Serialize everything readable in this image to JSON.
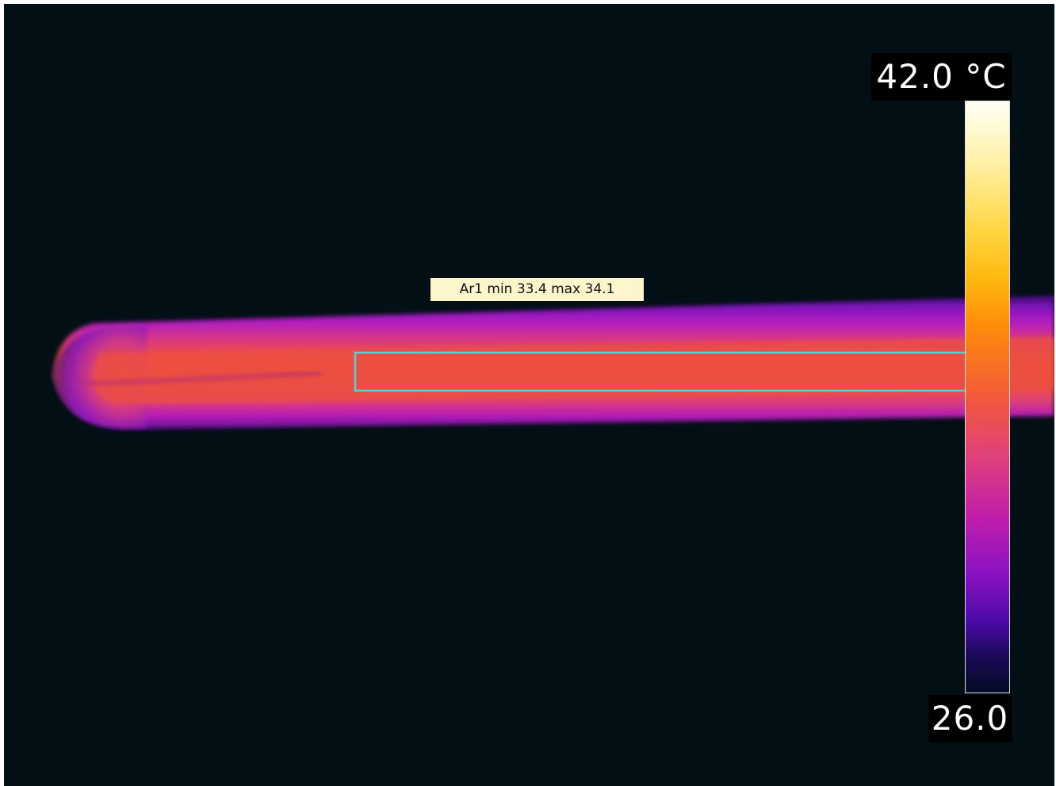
{
  "measurement": {
    "area_label": "Ar1 min 33.4 max 34.1",
    "area_name": "Ar1",
    "min": 33.4,
    "max": 34.1
  },
  "scale": {
    "max_label": "42.0 °C",
    "min_label": "26.0",
    "max_value": 42.0,
    "min_value": 26.0,
    "unit": "°C"
  },
  "colors": {
    "background": "#020f14",
    "roi_outline": "#4fd6dc",
    "label_background": "#fdf6cc",
    "object_core": "#ec5040",
    "object_edge": "#9a18c8"
  }
}
